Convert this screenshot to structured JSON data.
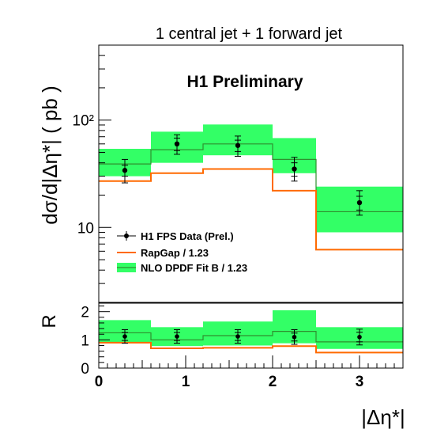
{
  "chart_data": [
    {
      "type": "line",
      "panel": "top",
      "title": "1 central jet + 1 forward jet",
      "annotation": "H1 Preliminary",
      "ylabel": "dσ/d|Δη*| ( pb )",
      "yscale": "log",
      "ylim": [
        2,
        500
      ],
      "y_ticks": [
        {
          "value": 10,
          "label": "10"
        },
        {
          "value": 100,
          "label": "10²"
        }
      ],
      "xlim": [
        0,
        3.5
      ],
      "bin_edges": [
        0,
        0.6,
        1.2,
        2.0,
        2.5,
        3.5
      ],
      "legend": {
        "placement": "bottom-left",
        "entries": [
          {
            "label": "H1 FPS Data (Prel.)",
            "style": "marker"
          },
          {
            "label": "RapGap / 1.23",
            "style": "line"
          },
          {
            "label": "NLO DPDF Fit B / 1.23",
            "style": "band"
          }
        ]
      },
      "series": [
        {
          "name": "H1 FPS Data (Prel.)",
          "type": "points",
          "x": [
            0.3,
            0.9,
            1.6,
            2.25,
            3.0
          ],
          "y": [
            34,
            60,
            58,
            35,
            17
          ],
          "y_stat_err": [
            [
              30,
              38
            ],
            [
              52,
              68
            ],
            [
              51,
              65
            ],
            [
              30,
              40
            ],
            [
              14.5,
              19.5
            ]
          ],
          "y_tot_err": [
            [
              26,
              43
            ],
            [
              48,
              73
            ],
            [
              46,
              71
            ],
            [
              27,
              45
            ],
            [
              13,
              22
            ]
          ]
        },
        {
          "name": "RapGap / 1.23",
          "type": "step",
          "values": [
            27,
            32,
            35,
            22,
            6.2
          ],
          "color": "#ff6a00"
        },
        {
          "name": "NLO DPDF Fit B / 1.23",
          "type": "step_band",
          "values": [
            39,
            53,
            60,
            43,
            14
          ],
          "band_low": [
            30,
            40,
            47,
            32,
            9
          ],
          "band_high": [
            54,
            78,
            91,
            68,
            24
          ],
          "color": "#33ff66",
          "line_color": "#2f8f2f"
        }
      ]
    },
    {
      "type": "line",
      "panel": "ratio",
      "ylabel": "R",
      "xlabel": "|Δη*|",
      "ylim": [
        0,
        2.3
      ],
      "y_ticks": [
        {
          "value": 0,
          "label": "0"
        },
        {
          "value": 1,
          "label": "1"
        },
        {
          "value": 2,
          "label": "2"
        }
      ],
      "xlim": [
        0,
        3.5
      ],
      "x_ticks": [
        {
          "value": 0,
          "label": "0"
        },
        {
          "value": 1,
          "label": "1"
        },
        {
          "value": 2,
          "label": "2"
        },
        {
          "value": 3,
          "label": "3"
        }
      ],
      "bin_edges": [
        0,
        0.6,
        1.2,
        2.0,
        2.5,
        3.5
      ],
      "series": [
        {
          "name": "H1 FPS Data (Prel.)",
          "type": "points",
          "x": [
            0.3,
            0.9,
            1.6,
            2.25,
            3.0
          ],
          "y": [
            1.12,
            1.12,
            1.12,
            1.1,
            1.1
          ],
          "y_stat_err": [
            [
              0.98,
              1.26
            ],
            [
              0.98,
              1.26
            ],
            [
              0.98,
              1.26
            ],
            [
              0.96,
              1.24
            ],
            [
              0.93,
              1.27
            ]
          ],
          "y_tot_err": [
            [
              0.88,
              1.36
            ],
            [
              0.88,
              1.36
            ],
            [
              0.88,
              1.36
            ],
            [
              0.84,
              1.36
            ],
            [
              0.82,
              1.38
            ]
          ]
        },
        {
          "name": "RapGap / 1.23",
          "type": "step",
          "values": [
            0.9,
            0.7,
            0.72,
            0.78,
            0.55
          ],
          "color": "#ff6a00"
        },
        {
          "name": "NLO DPDF Fit B / 1.23",
          "type": "step_band",
          "values": [
            1.25,
            1.0,
            1.15,
            1.3,
            0.93
          ],
          "band_low": [
            0.88,
            0.78,
            0.8,
            0.88,
            0.68
          ],
          "band_high": [
            1.7,
            1.45,
            1.65,
            2.05,
            1.45
          ],
          "color": "#33ff66",
          "line_color": "#2f8f2f"
        }
      ]
    }
  ]
}
